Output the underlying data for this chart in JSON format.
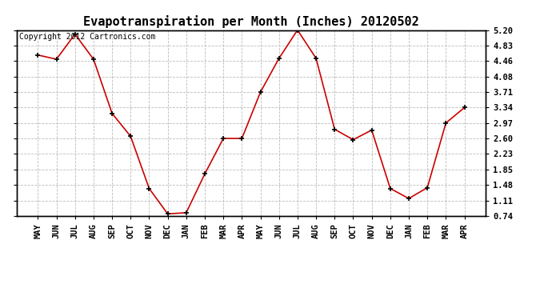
{
  "title": "Evapotranspiration per Month (Inches) 20120502",
  "copyright": "Copyright 2012 Cartronics.com",
  "months": [
    "MAY",
    "JUN",
    "JUL",
    "AUG",
    "SEP",
    "OCT",
    "NOV",
    "DEC",
    "JAN",
    "FEB",
    "MAR",
    "APR",
    "MAY",
    "JUN",
    "JUL",
    "AUG",
    "SEP",
    "OCT",
    "NOV",
    "DEC",
    "JAN",
    "FEB",
    "MAR",
    "APR"
  ],
  "values": [
    4.6,
    4.5,
    5.1,
    4.5,
    3.2,
    2.65,
    1.4,
    0.79,
    0.82,
    1.75,
    2.6,
    2.6,
    3.71,
    4.52,
    5.2,
    4.52,
    2.82,
    2.57,
    2.8,
    1.4,
    1.16,
    1.42,
    2.97,
    3.34
  ],
  "line_color": "#cc0000",
  "marker": "+",
  "marker_color": "#000000",
  "background_color": "#ffffff",
  "grid_color": "#bbbbbb",
  "yticks": [
    0.74,
    1.11,
    1.48,
    1.85,
    2.23,
    2.6,
    2.97,
    3.34,
    3.71,
    4.08,
    4.46,
    4.83,
    5.2
  ],
  "ylim": [
    0.74,
    5.2
  ],
  "title_fontsize": 11,
  "copyright_fontsize": 7,
  "tick_fontsize": 7.5
}
